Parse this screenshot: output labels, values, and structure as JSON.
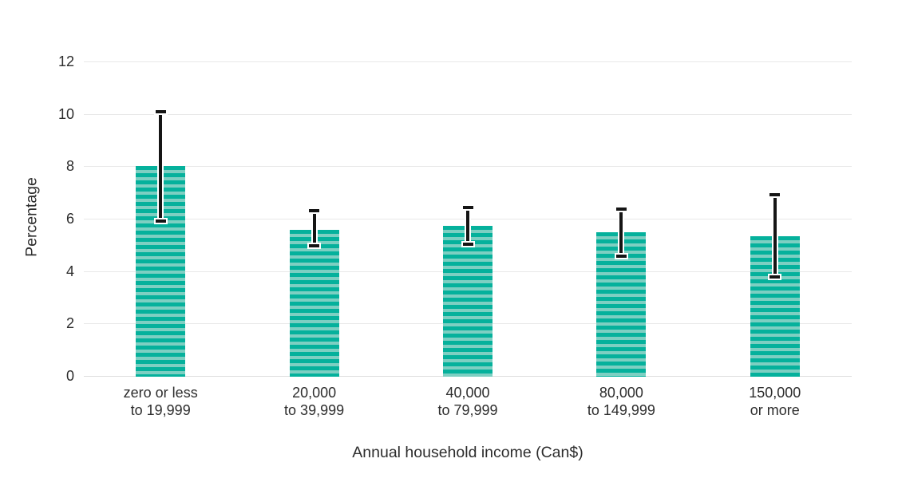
{
  "chart_data": {
    "type": "bar",
    "title": "",
    "xlabel": "Annual household income (Can$)",
    "ylabel": "Percentage",
    "categories": [
      "zero or less\nto 19,999",
      "20,000\nto 39,999",
      "40,000\nto 79,999",
      "80,000\nto 149,999",
      "150,000\nor more"
    ],
    "values": [
      8.05,
      5.6,
      5.75,
      5.5,
      5.35
    ],
    "error_low": [
      5.95,
      5.0,
      5.05,
      4.6,
      3.8
    ],
    "error_high": [
      10.1,
      6.35,
      6.45,
      6.4,
      6.95
    ],
    "y_ticks": [
      0,
      2,
      4,
      6,
      8,
      10,
      12
    ],
    "ylim": [
      0,
      12
    ],
    "grid": "horizontal",
    "legend": "none",
    "bar_style": "horizontal-stripes",
    "colors": {
      "bar_stripe_dark": "#05b19c",
      "bar_stripe_light": "#7dcfc2",
      "error_bar": "#151515",
      "error_bar_halo": "#ffffff",
      "gridline": "#e8e8e8",
      "axis_line": "#dedede",
      "text": "#2d2d2d"
    }
  }
}
